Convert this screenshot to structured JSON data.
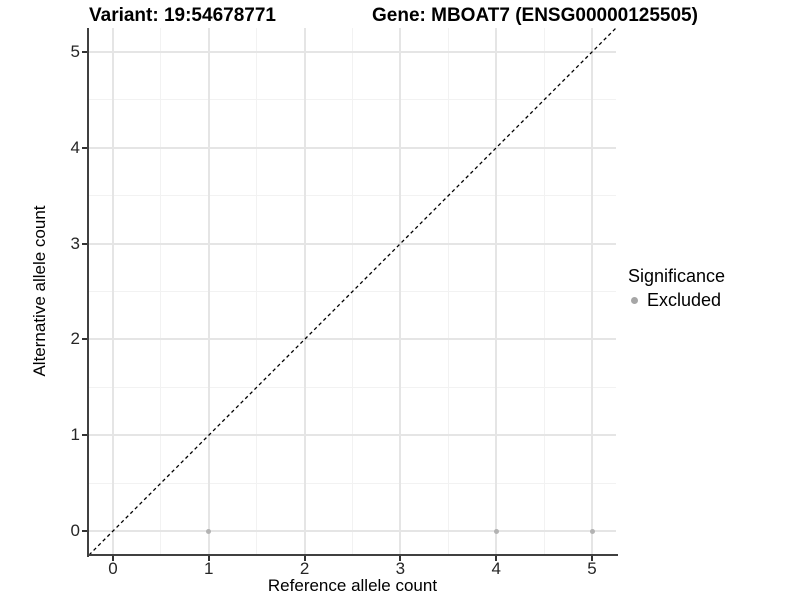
{
  "chart_data": {
    "type": "scatter",
    "title_left": "Variant: 19:54678771",
    "title_right": "Gene: MBOAT7 (ENSG00000125505)",
    "xlabel": "Reference allele count",
    "ylabel": "Alternative allele count",
    "xlim": [
      -0.25,
      5.25
    ],
    "ylim": [
      -0.25,
      5.25
    ],
    "x_ticks": [
      0,
      1,
      2,
      3,
      4,
      5
    ],
    "y_ticks": [
      0,
      1,
      2,
      3,
      4,
      5
    ],
    "x_minor_ticks": [
      0.5,
      1.5,
      2.5,
      3.5,
      4.5
    ],
    "y_minor_ticks": [
      0.5,
      1.5,
      2.5,
      3.5,
      4.5
    ],
    "grid": true,
    "series": [
      {
        "name": "Excluded",
        "marker": "circle",
        "color": "#b3b3b3",
        "points": [
          {
            "x": 1,
            "y": 0
          },
          {
            "x": 4,
            "y": 0
          },
          {
            "x": 5,
            "y": 0
          }
        ]
      }
    ],
    "reference_line": {
      "slope": 1,
      "intercept": 0,
      "style": "dashed",
      "color": "#000000"
    },
    "legend": {
      "title": "Significance",
      "position": "right",
      "items": [
        {
          "label": "Excluded",
          "color": "#a6a6a6",
          "marker": "circle"
        }
      ]
    },
    "colors": {
      "background": "#ffffff",
      "grid_major": "#e5e5e5",
      "grid_minor": "#f2f2f2",
      "axis_line": "#404040",
      "tick_mark": "#333333",
      "tick_label": "#262626"
    }
  }
}
